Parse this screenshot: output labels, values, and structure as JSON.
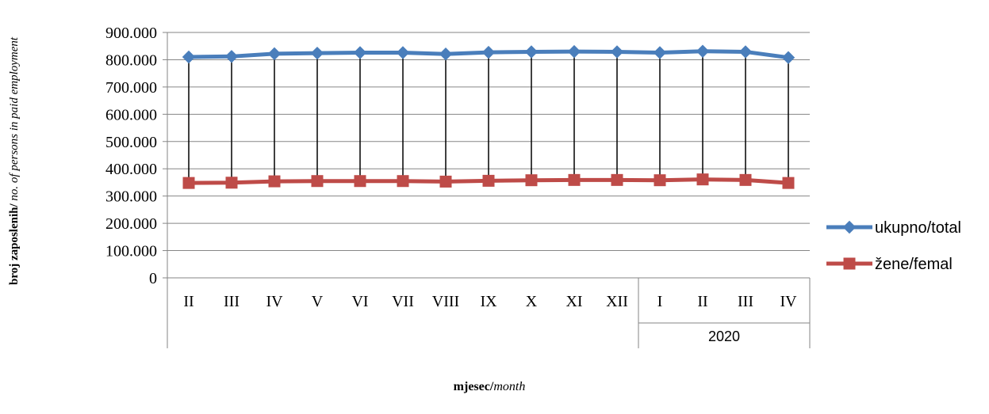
{
  "chart_data": {
    "type": "line",
    "categories": [
      "II",
      "III",
      "IV",
      "V",
      "VI",
      "VII",
      "VIII",
      "IX",
      "X",
      "XI",
      "XII",
      "I",
      "II",
      "III",
      "IV"
    ],
    "groups": [
      {
        "label": "",
        "count": 11
      },
      {
        "label": "2020",
        "count": 4
      }
    ],
    "series": [
      {
        "name": "ukupno/total",
        "color": "#4a7ebb",
        "marker": "diamond",
        "values": [
          810000,
          812000,
          822000,
          824000,
          826000,
          826000,
          821000,
          827000,
          829000,
          830000,
          829000,
          826000,
          831000,
          829000,
          808000
        ]
      },
      {
        "name": "žene/femal",
        "color": "#be4b48",
        "marker": "square",
        "values": [
          348000,
          349000,
          354000,
          355000,
          355000,
          355000,
          353000,
          356000,
          358000,
          359000,
          359000,
          358000,
          361000,
          359000,
          348000
        ]
      }
    ],
    "high_low_lines": true,
    "ylim": [
      0,
      900000
    ],
    "yticks": [
      0,
      100000,
      200000,
      300000,
      400000,
      500000,
      600000,
      700000,
      800000,
      900000
    ],
    "ytick_labels": [
      "0",
      "100.000",
      "200.000",
      "300.000",
      "400.000",
      "500.000",
      "600.000",
      "700.000",
      "800.000",
      "900.000"
    ],
    "xlabel": {
      "bold": "mjesec/",
      "italic": "month"
    },
    "ylabel": {
      "bold": "broj zaposlenih/",
      "italic": " no. of  persons  in paid employment"
    },
    "grid": true,
    "legend_position": "right"
  }
}
